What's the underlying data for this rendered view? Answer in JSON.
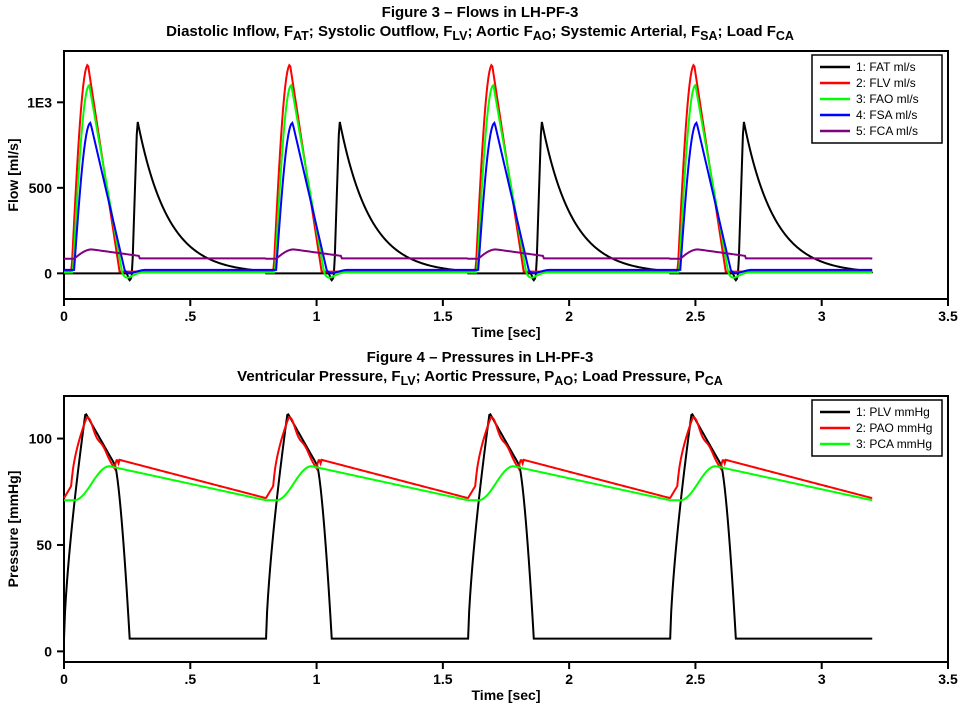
{
  "figure3": {
    "title1": "Figure 3 – Flows in LH-PF-3",
    "title2_html": "Diastolic Inflow, F<sub>AT</sub>; Systolic Outflow, F<sub>LV</sub>; Aortic F<sub>AO</sub>; Systemic Arterial, F<sub>SA</sub>; Load F<sub>CA</sub>",
    "title_fontsize": 15,
    "ylabel": "Flow [ml/s]",
    "xlabel": "Time [sec]",
    "label_fontsize": 13,
    "xlim": [
      0,
      3.5
    ],
    "ylim": [
      -150,
      1300
    ],
    "xticks": [
      0,
      0.5,
      1,
      1.5,
      2,
      2.5,
      3,
      3.5
    ],
    "xtick_labels": [
      "0",
      ".5",
      "1",
      "1.5",
      "2",
      "2.5",
      "3",
      "3.5"
    ],
    "yticks": [
      0,
      500,
      1000
    ],
    "ytick_labels": [
      "0",
      "500",
      "1E3"
    ],
    "background_color": "#ffffff",
    "axis_color": "#000000",
    "legend": {
      "position": "top-right",
      "items": [
        {
          "label": "1: FAT ml/s",
          "color": "#000000"
        },
        {
          "label": "2: FLV ml/s",
          "color": "#ff0000"
        },
        {
          "label": "3: FAO ml/s",
          "color": "#00ff00"
        },
        {
          "label": "4: FSA ml/s",
          "color": "#0000ff"
        },
        {
          "label": "5: FCA ml/s",
          "color": "#800080"
        }
      ]
    },
    "period": 0.8,
    "cycles": 4,
    "series": {
      "FAT": {
        "color": "#000000",
        "peak": 900,
        "base": 0,
        "rise_start": 0.27,
        "peak_t": 0.29,
        "decay_tau": 0.12,
        "end_t": 0.8,
        "pre_dip": -40
      },
      "FLV": {
        "color": "#ff0000",
        "peak": 1220,
        "base": 10,
        "rise_start": 0.03,
        "peak_t": 0.095,
        "fall_end": 0.22
      },
      "FAO": {
        "color": "#00ff00",
        "peak": 1100,
        "base": 5,
        "rise_start": 0.035,
        "peak_t": 0.1,
        "fall_end": 0.23,
        "undershoot": -90
      },
      "FSA": {
        "color": "#0000ff",
        "peak": 880,
        "base": 20,
        "rise_start": 0.04,
        "peak_t": 0.105,
        "fall_end": 0.24,
        "undershoot": -60
      },
      "FCA": {
        "color": "#800080",
        "peak": 140,
        "base": 85,
        "rise_start": 0.04,
        "peak_t": 0.11,
        "fall_end": 0.3
      }
    }
  },
  "figure4": {
    "title1": "Figure 4 – Pressures in LH-PF-3",
    "title2_html": "Ventricular Pressure, F<sub>LV</sub>; Aortic Pressure, P<sub>AO</sub>; Load Pressure, P<sub>CA</sub>",
    "title_fontsize": 15,
    "ylabel": "Pressure [mmHg]",
    "xlabel": "Time [sec]",
    "label_fontsize": 13,
    "xlim": [
      0,
      3.5
    ],
    "ylim": [
      -5,
      120
    ],
    "xticks": [
      0,
      0.5,
      1,
      1.5,
      2,
      2.5,
      3,
      3.5
    ],
    "xtick_labels": [
      "0",
      ".5",
      "1",
      "1.5",
      "2",
      "2.5",
      "3",
      "3.5"
    ],
    "yticks": [
      0,
      50,
      100
    ],
    "ytick_labels": [
      "0",
      "50",
      "100"
    ],
    "background_color": "#ffffff",
    "axis_color": "#000000",
    "legend": {
      "position": "top-right",
      "items": [
        {
          "label": "1: PLV mmHg",
          "color": "#000000"
        },
        {
          "label": "2: PAO mmHg",
          "color": "#ff0000"
        },
        {
          "label": "3: PCA mmHg",
          "color": "#00ff00"
        }
      ]
    },
    "period": 0.8,
    "cycles": 4,
    "series": {
      "PLV": {
        "color": "#000000",
        "diastole": 6,
        "peak": 112,
        "rise_start": 0.0,
        "peak_t": 0.085,
        "shoulder_val": 88,
        "shoulder_t": 0.2,
        "fall_t": 0.26
      },
      "PAO": {
        "color": "#ff0000",
        "dia_start": 72,
        "peak": 110,
        "peak_t": 0.09,
        "notch_t": 0.2,
        "notch_val": 86,
        "post_notch": 90,
        "decay_end": 72
      },
      "PCA": {
        "color": "#00ff00",
        "dia_start": 71,
        "peak": 87,
        "peak_t": 0.18,
        "decay_end": 71
      }
    }
  }
}
